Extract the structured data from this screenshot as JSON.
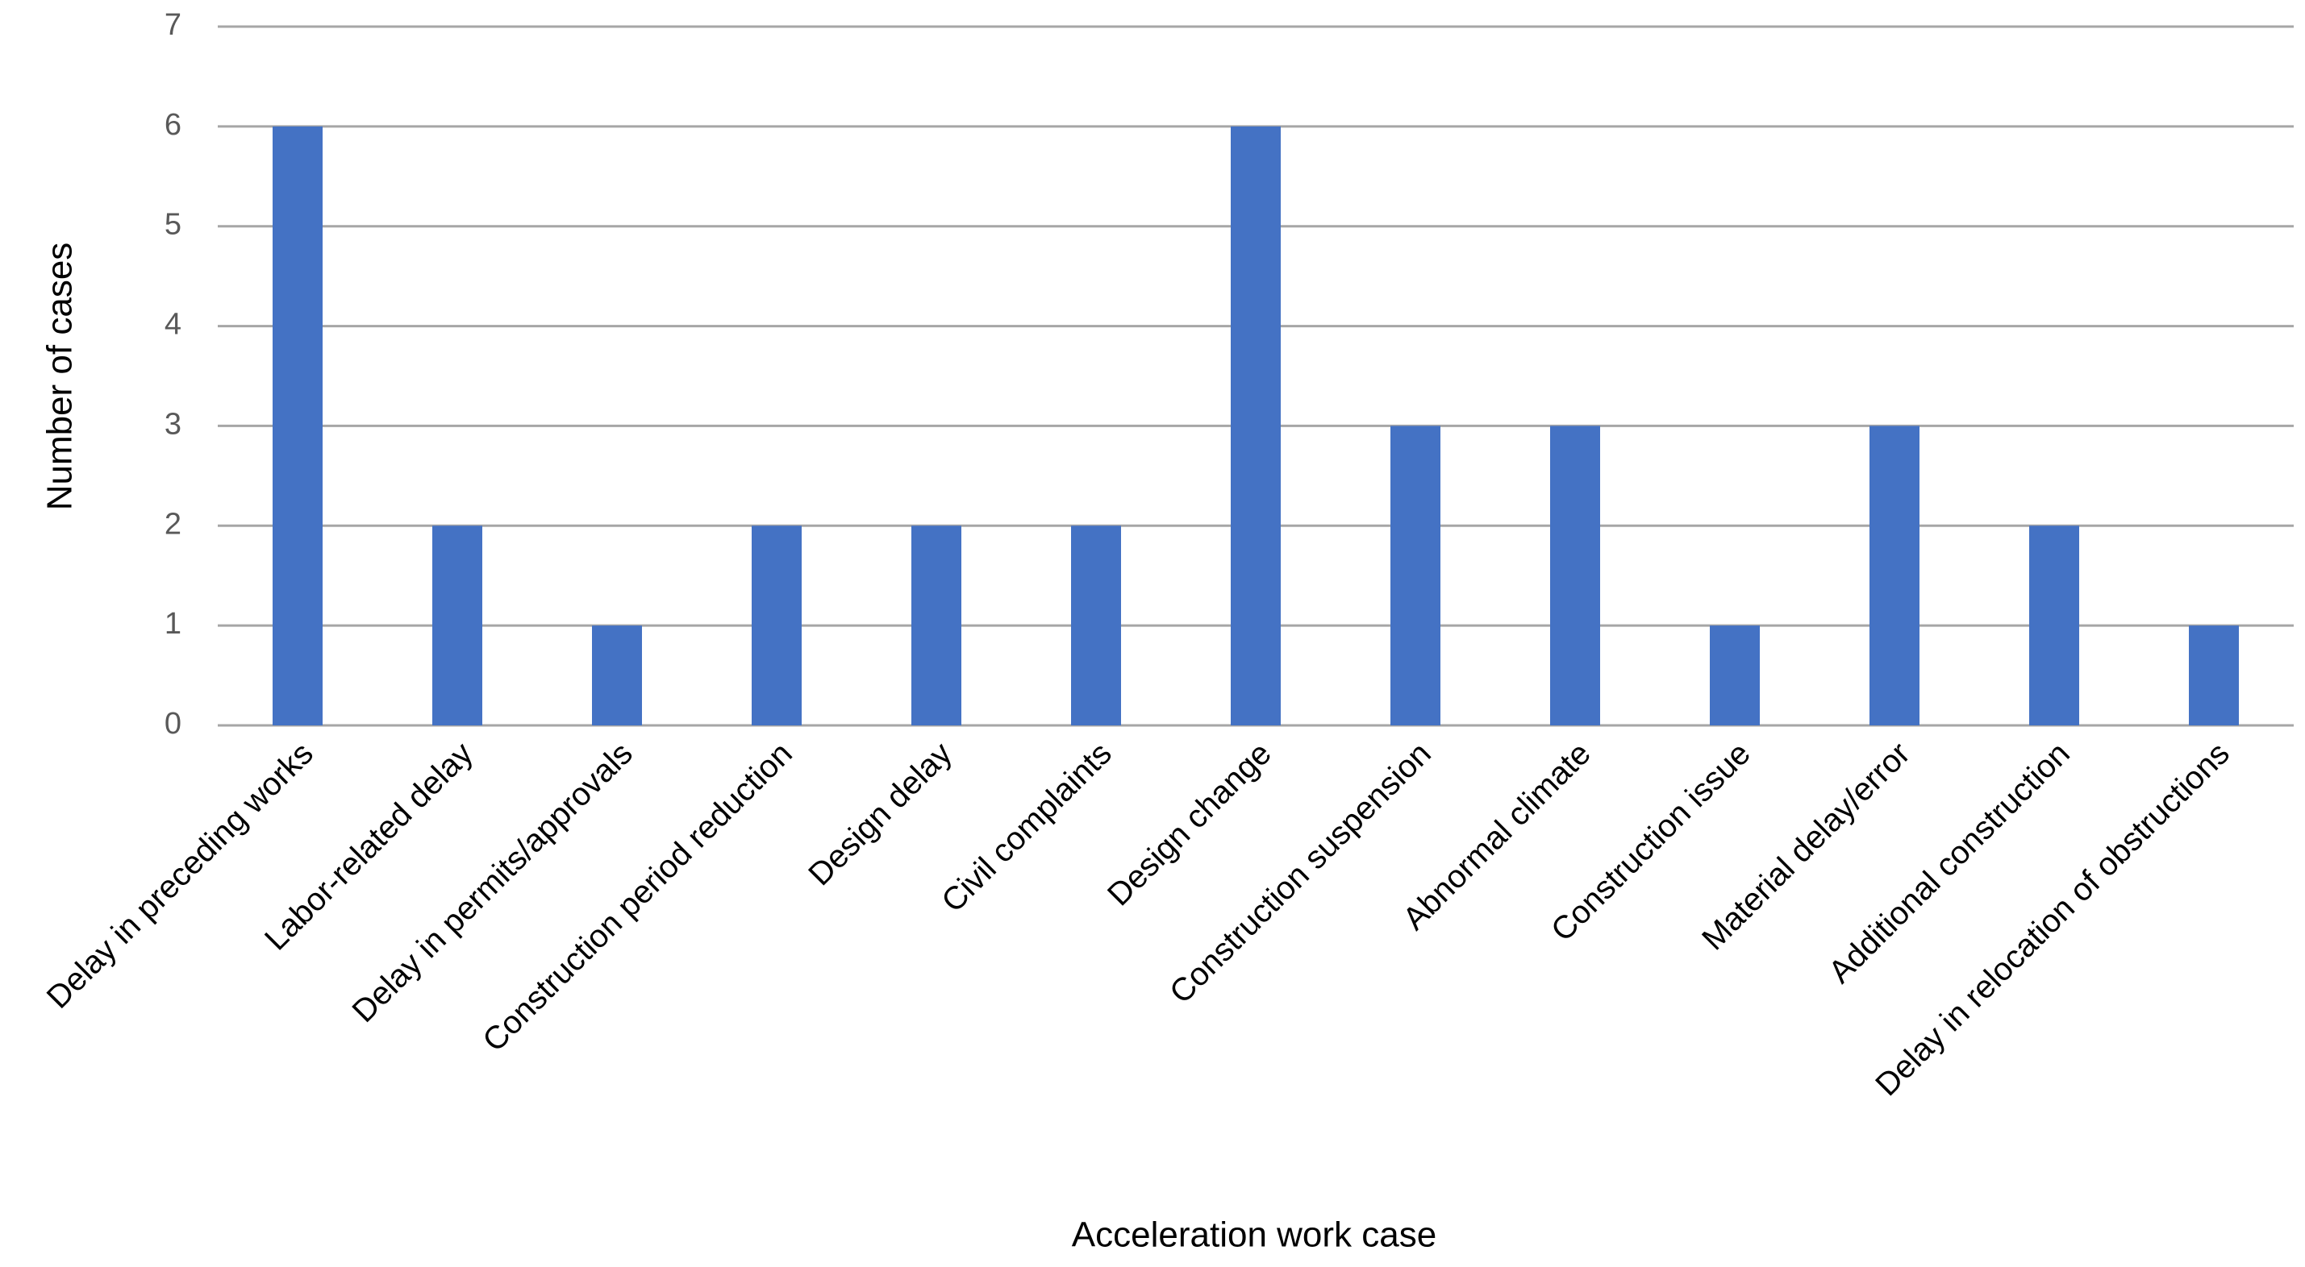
{
  "chart_data": {
    "type": "bar",
    "xlabel": "Acceleration work case",
    "ylabel": "Number of cases",
    "categories": [
      "Delay in preceding works",
      "Labor-related delay",
      "Delay in permits/approvals",
      "Construction period reduction",
      "Design delay",
      "Civil complaints",
      "Design change",
      "Construction suspension",
      "Abnormal climate",
      "Construction issue",
      "Material delay/error",
      "Additional construction",
      "Delay in relocation of obstructions"
    ],
    "values": [
      6,
      2,
      1,
      2,
      2,
      2,
      6,
      3,
      3,
      1,
      3,
      2,
      1
    ],
    "color": "#4472c4",
    "ylim": [
      0,
      7
    ],
    "yticks": [
      0,
      1,
      2,
      3,
      4,
      5,
      6,
      7
    ],
    "grid": true
  }
}
